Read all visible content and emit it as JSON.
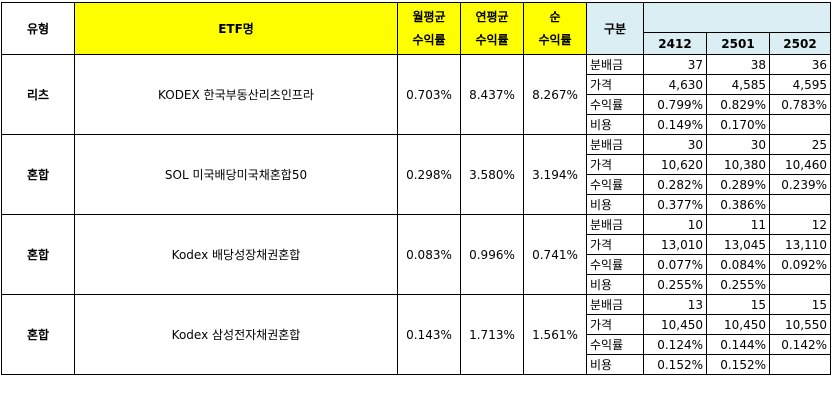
{
  "header": {
    "type": "유형",
    "etf_name": "ETF명",
    "monthly_line1": "월평균",
    "monthly_line2": "수익률",
    "annual_line1": "연평균",
    "annual_line2": "수익률",
    "net_line1": "순",
    "net_line2": "수익률",
    "gubun": "구분",
    "years": [
      "2412",
      "2501",
      "2502"
    ]
  },
  "colors": {
    "highlight_yellow": "#ffff00",
    "header_blue": "#daeef3",
    "border": "#000000"
  },
  "groups": [
    {
      "type": "리츠",
      "name": "KODEX 한국부동산리츠인프라",
      "monthly": "0.703%",
      "annual": "8.437%",
      "net": "8.267%",
      "rows": [
        {
          "label": "분배금",
          "values": [
            "37",
            "38",
            "36"
          ]
        },
        {
          "label": "가격",
          "values": [
            "4,630",
            "4,585",
            "4,595"
          ]
        },
        {
          "label": "수익률",
          "values": [
            "0.799%",
            "0.829%",
            "0.783%"
          ]
        },
        {
          "label": "비용",
          "values": [
            "0.149%",
            "0.170%",
            ""
          ]
        }
      ]
    },
    {
      "type": "혼합",
      "name": "SOL 미국배당미국채혼합50",
      "monthly": "0.298%",
      "annual": "3.580%",
      "net": "3.194%",
      "rows": [
        {
          "label": "분배금",
          "values": [
            "30",
            "30",
            "25"
          ]
        },
        {
          "label": "가격",
          "values": [
            "10,620",
            "10,380",
            "10,460"
          ]
        },
        {
          "label": "수익률",
          "values": [
            "0.282%",
            "0.289%",
            "0.239%"
          ]
        },
        {
          "label": "비용",
          "values": [
            "0.377%",
            "0.386%",
            ""
          ]
        }
      ]
    },
    {
      "type": "혼합",
      "name": "Kodex 배당성장채권혼합",
      "monthly": "0.083%",
      "annual": "0.996%",
      "net": "0.741%",
      "rows": [
        {
          "label": "분배금",
          "values": [
            "10",
            "11",
            "12"
          ]
        },
        {
          "label": "가격",
          "values": [
            "13,010",
            "13,045",
            "13,110"
          ]
        },
        {
          "label": "수익률",
          "values": [
            "0.077%",
            "0.084%",
            "0.092%"
          ]
        },
        {
          "label": "비용",
          "values": [
            "0.255%",
            "0.255%",
            ""
          ]
        }
      ]
    },
    {
      "type": "혼합",
      "name": "Kodex 삼성전자채권혼합",
      "monthly": "0.143%",
      "annual": "1.713%",
      "net": "1.561%",
      "rows": [
        {
          "label": "분배금",
          "values": [
            "13",
            "15",
            "15"
          ]
        },
        {
          "label": "가격",
          "values": [
            "10,450",
            "10,450",
            "10,550"
          ]
        },
        {
          "label": "수익률",
          "values": [
            "0.124%",
            "0.144%",
            "0.142%"
          ]
        },
        {
          "label": "비용",
          "values": [
            "0.152%",
            "0.152%",
            ""
          ]
        }
      ]
    }
  ]
}
